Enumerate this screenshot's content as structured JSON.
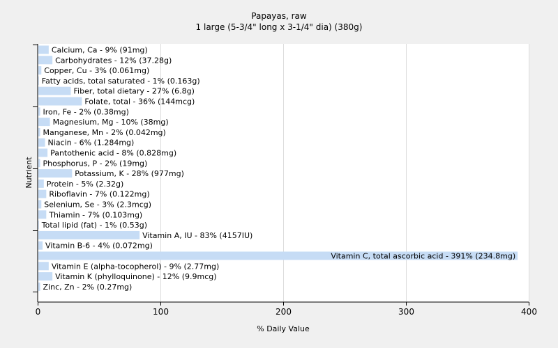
{
  "chart_data": {
    "type": "bar",
    "orientation": "horizontal",
    "title": "Papayas, raw",
    "subtitle": "1 large (5-3/4\" long x 3-1/4\" dia) (380g)",
    "xlabel": "% Daily Value",
    "ylabel": "Nutrient",
    "xlim": [
      0,
      400
    ],
    "xticks": [
      0,
      100,
      200,
      300,
      400
    ],
    "grid": true,
    "categories": [
      "Calcium, Ca - 9% (91mg)",
      "Carbohydrates - 12% (37.28g)",
      "Copper, Cu - 3% (0.061mg)",
      "Fatty acids, total saturated - 1% (0.163g)",
      "Fiber, total dietary - 27% (6.8g)",
      "Folate, total - 36% (144mcg)",
      "Iron, Fe - 2% (0.38mg)",
      "Magnesium, Mg - 10% (38mg)",
      "Manganese, Mn - 2% (0.042mg)",
      "Niacin - 6% (1.284mg)",
      "Pantothenic acid - 8% (0.828mg)",
      "Phosphorus, P - 2% (19mg)",
      "Potassium, K - 28% (977mg)",
      "Protein - 5% (2.32g)",
      "Riboflavin - 7% (0.122mg)",
      "Selenium, Se - 3% (2.3mcg)",
      "Thiamin - 7% (0.103mg)",
      "Total lipid (fat) - 1% (0.53g)",
      "Vitamin A, IU - 83% (4157IU)",
      "Vitamin B-6 - 4% (0.072mg)",
      "Vitamin C, total ascorbic acid - 391% (234.8mg)",
      "Vitamin E (alpha-tocopherol) - 9% (2.77mg)",
      "Vitamin K (phylloquinone) - 12% (9.9mcg)",
      "Zinc, Zn - 2% (0.27mg)"
    ],
    "values": [
      9,
      12,
      3,
      1,
      27,
      36,
      2,
      10,
      2,
      6,
      8,
      2,
      28,
      5,
      7,
      3,
      7,
      1,
      83,
      4,
      391,
      9,
      12,
      2
    ],
    "colors": {
      "bar": "#c6dcf5",
      "background": "#f0f0f0",
      "plot_background": "#ffffff",
      "grid": "#dcdcdc"
    }
  }
}
